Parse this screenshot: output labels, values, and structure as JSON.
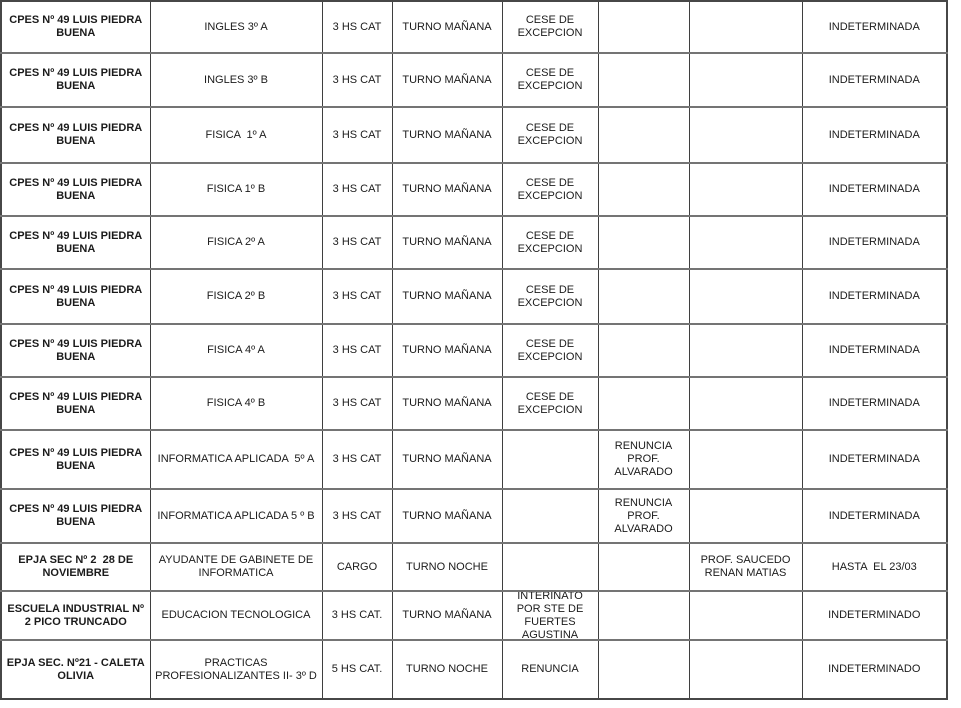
{
  "table": {
    "rows": [
      [
        "CPES Nº 49 LUIS PIEDRA BUENA",
        "INGLES 3º A",
        "3 HS CAT",
        "TURNO MAÑANA",
        "CESE DE EXCEPCION",
        "",
        "",
        "INDETERMINADA"
      ],
      [
        "CPES Nº 49 LUIS PIEDRA BUENA",
        "INGLES 3º B",
        "3 HS CAT",
        "TURNO MAÑANA",
        "CESE DE EXCEPCION",
        "",
        "",
        "INDETERMINADA"
      ],
      [
        "CPES Nº 49 LUIS PIEDRA BUENA",
        "FISICA  1º A",
        "3 HS CAT",
        "TURNO MAÑANA",
        "CESE DE EXCEPCION",
        "",
        "",
        "INDETERMINADA"
      ],
      [
        "CPES Nº 49 LUIS PIEDRA BUENA",
        "FISICA 1º B",
        "3 HS CAT",
        "TURNO MAÑANA",
        "CESE DE EXCEPCION",
        "",
        "",
        "INDETERMINADA"
      ],
      [
        "CPES Nº 49 LUIS PIEDRA BUENA",
        "FISICA 2º A",
        "3 HS CAT",
        "TURNO MAÑANA",
        "CESE DE EXCEPCION",
        "",
        "",
        "INDETERMINADA"
      ],
      [
        "CPES Nº 49 LUIS PIEDRA BUENA",
        "FISICA 2º B",
        "3 HS CAT",
        "TURNO MAÑANA",
        "CESE DE EXCEPCION",
        "",
        "",
        "INDETERMINADA"
      ],
      [
        "CPES Nº 49 LUIS PIEDRA BUENA",
        "FISICA 4º A",
        "3 HS CAT",
        "TURNO MAÑANA",
        "CESE DE EXCEPCION",
        "",
        "",
        "INDETERMINADA"
      ],
      [
        "CPES Nº 49 LUIS PIEDRA BUENA",
        "FISICA 4º B",
        "3 HS CAT",
        "TURNO MAÑANA",
        "CESE DE EXCEPCION",
        "",
        "",
        "INDETERMINADA"
      ],
      [
        "CPES Nº 49 LUIS PIEDRA BUENA",
        "INFORMATICA APLICADA  5º A",
        "3 HS CAT",
        "TURNO MAÑANA",
        "",
        "RENUNCIA PROF. ALVARADO",
        "",
        "INDETERMINADA"
      ],
      [
        "CPES Nº 49 LUIS PIEDRA BUENA",
        "INFORMATICA APLICADA 5 º B",
        "3 HS CAT",
        "TURNO MAÑANA",
        "",
        "RENUNCIA PROF. ALVARADO",
        "",
        "INDETERMINADA"
      ],
      [
        "EPJA SEC Nº 2  28 DE NOVIEMBRE",
        "AYUDANTE DE GABINETE DE INFORMATICA",
        "CARGO",
        "TURNO NOCHE",
        "",
        "",
        "PROF. SAUCEDO RENAN MATIAS",
        "HASTA  EL 23/03"
      ],
      [
        "ESCUELA INDUSTRIAL Nº 2 PICO TRUNCADO",
        "EDUCACION TECNOLOGICA",
        "3 HS CAT.",
        "TURNO MAÑANA",
        "INTERINATO POR STE DE FUERTES AGUSTINA",
        "",
        "",
        "INDETERMINADO"
      ],
      [
        "EPJA SEC. Nº21 - CALETA OLIVIA",
        "PRACTICAS PROFESIONALIZANTES II- 3º D",
        "5 HS CAT.",
        "TURNO NOCHE",
        "RENUNCIA",
        "",
        "",
        "INDETERMINADO"
      ]
    ]
  }
}
